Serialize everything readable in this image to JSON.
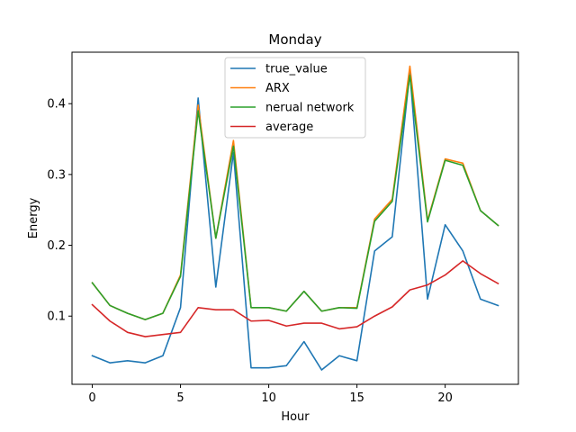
{
  "chart_data": {
    "type": "line",
    "title": "Monday",
    "xlabel": "Hour",
    "ylabel": "Energy",
    "xlim": [
      -1.15,
      24.15
    ],
    "ylim": [
      0.0037,
      0.4727
    ],
    "x_ticks": [
      0,
      5,
      10,
      15,
      20
    ],
    "y_ticks": [
      0.1,
      0.2,
      0.3,
      0.4
    ],
    "y_tick_labels": [
      "0.1",
      "0.2",
      "0.3",
      "0.4"
    ],
    "grid": false,
    "legend_position": "top-center",
    "x": [
      0,
      1,
      2,
      3,
      4,
      5,
      6,
      7,
      8,
      9,
      10,
      11,
      12,
      13,
      14,
      15,
      16,
      17,
      18,
      19,
      20,
      21,
      22,
      23
    ],
    "series": [
      {
        "name": "true_value",
        "color": "#1f77b4",
        "values": [
          0.044,
          0.034,
          0.037,
          0.034,
          0.044,
          0.112,
          0.408,
          0.141,
          0.331,
          0.027,
          0.027,
          0.03,
          0.064,
          0.024,
          0.044,
          0.037,
          0.192,
          0.212,
          0.445,
          0.124,
          0.229,
          0.192,
          0.124,
          0.115
        ]
      },
      {
        "name": "ARX",
        "color": "#ff7f0e",
        "values": [
          0.147,
          0.115,
          0.104,
          0.095,
          0.104,
          0.158,
          0.398,
          0.21,
          0.348,
          0.112,
          0.112,
          0.107,
          0.135,
          0.107,
          0.112,
          0.112,
          0.237,
          0.265,
          0.453,
          0.235,
          0.322,
          0.316,
          0.249,
          0.228
        ]
      },
      {
        "name": "nerual network",
        "color": "#2ca02c",
        "values": [
          0.147,
          0.115,
          0.104,
          0.095,
          0.104,
          0.156,
          0.39,
          0.21,
          0.34,
          0.112,
          0.112,
          0.107,
          0.135,
          0.107,
          0.112,
          0.111,
          0.234,
          0.262,
          0.44,
          0.233,
          0.32,
          0.313,
          0.249,
          0.228
        ]
      },
      {
        "name": "average",
        "color": "#d62728",
        "values": [
          0.116,
          0.093,
          0.077,
          0.071,
          0.074,
          0.077,
          0.112,
          0.109,
          0.109,
          0.093,
          0.094,
          0.086,
          0.09,
          0.09,
          0.082,
          0.085,
          0.1,
          0.113,
          0.137,
          0.144,
          0.158,
          0.178,
          0.16,
          0.146
        ]
      }
    ]
  }
}
